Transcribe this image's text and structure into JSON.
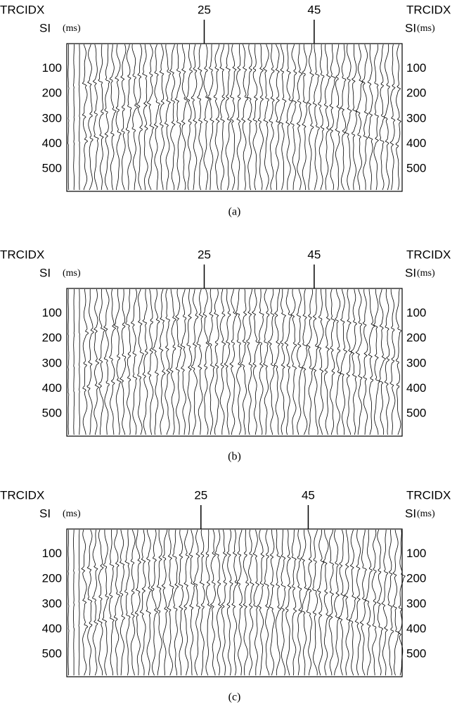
{
  "chart_data": [
    {
      "type": "seismic",
      "x_label": "TRCIDX",
      "y_label": "SI",
      "y_unit": "(ms)",
      "caption": "(a)",
      "xlim": [
        0,
        61
      ],
      "xticks": [
        25,
        45
      ],
      "ylim": [
        0,
        590
      ],
      "yticks": [
        100,
        200,
        300,
        400,
        500
      ]
    },
    {
      "type": "seismic",
      "x_label": "TRCIDX",
      "y_label": "SI",
      "y_unit": "(ms)",
      "caption": "(b)",
      "xlim": [
        0,
        61
      ],
      "xticks": [
        25,
        45
      ],
      "ylim": [
        0,
        590
      ],
      "yticks": [
        100,
        200,
        300,
        400,
        500
      ]
    },
    {
      "type": "seismic",
      "x_label": "TRCIDX",
      "y_label": "SI",
      "y_unit": "(ms)",
      "caption": "(c)",
      "xlim": [
        0,
        62.5
      ],
      "xticks": [
        25,
        45
      ],
      "ylim": [
        0,
        590
      ],
      "yticks": [
        100,
        200,
        300,
        400,
        500
      ]
    }
  ]
}
